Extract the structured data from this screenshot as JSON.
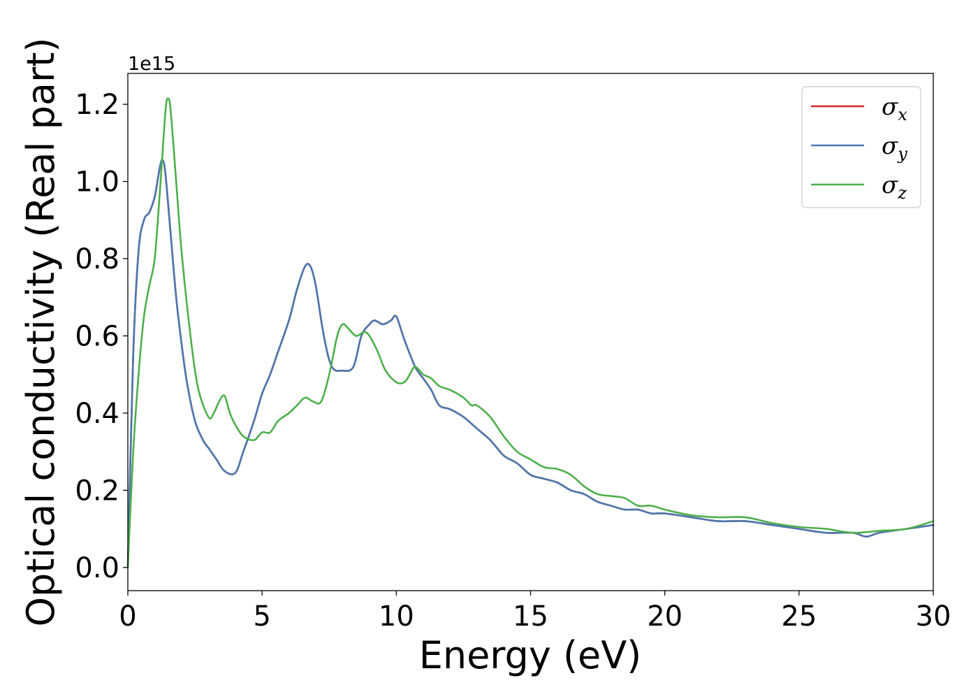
{
  "chart_data": {
    "type": "line",
    "xlabel": "Energy (eV)",
    "ylabel": "Optical conductivity (Real part)",
    "xlim": [
      0,
      30
    ],
    "ylim": [
      -0.06,
      1.28
    ],
    "y_offset_text": "1e15",
    "x_ticks": [
      0,
      5,
      10,
      15,
      20,
      25,
      30
    ],
    "x_tick_labels": [
      "0",
      "5",
      "10",
      "15",
      "20",
      "25",
      "30"
    ],
    "y_ticks": [
      0.0,
      0.2,
      0.4,
      0.6,
      0.8,
      1.0,
      1.2
    ],
    "y_tick_labels": [
      "0.0",
      "0.2",
      "0.4",
      "0.6",
      "0.8",
      "1.0",
      "1.2"
    ],
    "grid": false,
    "legend_position": "top-right",
    "series": [
      {
        "name": "σx",
        "legend_symbol": "σ",
        "legend_subscript": "x",
        "color": "#d62728",
        "x": [
          0,
          0.2,
          0.4,
          0.6,
          0.8,
          1.0,
          1.2,
          1.3,
          1.4,
          1.6,
          1.8,
          2.0,
          2.2,
          2.5,
          2.8,
          3.0,
          3.3,
          3.6,
          4.0,
          4.3,
          4.7,
          5.0,
          5.3,
          5.6,
          6.0,
          6.3,
          6.6,
          6.8,
          7.0,
          7.3,
          7.6,
          8.0,
          8.4,
          8.7,
          9.0,
          9.2,
          9.5,
          9.8,
          10.0,
          10.3,
          10.7,
          11.0,
          11.3,
          11.6,
          12.0,
          12.5,
          13.0,
          13.5,
          14.0,
          14.5,
          15.0,
          15.5,
          16.0,
          16.5,
          17.0,
          17.5,
          18.0,
          18.5,
          19.0,
          19.5,
          20.0,
          21.0,
          22.0,
          23.0,
          24.0,
          25.0,
          26.0,
          27.0,
          27.5,
          28.0,
          29.0,
          30.0
        ],
        "values": [
          0.0,
          0.55,
          0.82,
          0.9,
          0.92,
          0.96,
          1.04,
          1.055,
          1.02,
          0.86,
          0.7,
          0.58,
          0.48,
          0.38,
          0.33,
          0.31,
          0.28,
          0.25,
          0.245,
          0.3,
          0.38,
          0.45,
          0.5,
          0.56,
          0.64,
          0.72,
          0.78,
          0.78,
          0.73,
          0.6,
          0.52,
          0.51,
          0.52,
          0.6,
          0.63,
          0.64,
          0.63,
          0.64,
          0.65,
          0.59,
          0.52,
          0.49,
          0.46,
          0.42,
          0.41,
          0.39,
          0.36,
          0.33,
          0.29,
          0.27,
          0.24,
          0.23,
          0.22,
          0.2,
          0.19,
          0.17,
          0.16,
          0.15,
          0.15,
          0.14,
          0.14,
          0.13,
          0.12,
          0.12,
          0.11,
          0.1,
          0.09,
          0.09,
          0.08,
          0.09,
          0.1,
          0.11
        ]
      },
      {
        "name": "σy",
        "legend_symbol": "σ",
        "legend_subscript": "y",
        "color": "#4a78b0",
        "x": [
          0,
          0.2,
          0.4,
          0.6,
          0.8,
          1.0,
          1.2,
          1.3,
          1.4,
          1.6,
          1.8,
          2.0,
          2.2,
          2.5,
          2.8,
          3.0,
          3.3,
          3.6,
          4.0,
          4.3,
          4.7,
          5.0,
          5.3,
          5.6,
          6.0,
          6.3,
          6.6,
          6.8,
          7.0,
          7.3,
          7.6,
          8.0,
          8.4,
          8.7,
          9.0,
          9.2,
          9.5,
          9.8,
          10.0,
          10.3,
          10.7,
          11.0,
          11.3,
          11.6,
          12.0,
          12.5,
          13.0,
          13.5,
          14.0,
          14.5,
          15.0,
          15.5,
          16.0,
          16.5,
          17.0,
          17.5,
          18.0,
          18.5,
          19.0,
          19.5,
          20.0,
          21.0,
          22.0,
          23.0,
          24.0,
          25.0,
          26.0,
          27.0,
          27.5,
          28.0,
          29.0,
          30.0
        ],
        "values": [
          0.0,
          0.55,
          0.82,
          0.9,
          0.92,
          0.96,
          1.04,
          1.055,
          1.02,
          0.86,
          0.7,
          0.58,
          0.48,
          0.38,
          0.33,
          0.31,
          0.28,
          0.25,
          0.245,
          0.3,
          0.38,
          0.45,
          0.5,
          0.56,
          0.64,
          0.72,
          0.78,
          0.78,
          0.73,
          0.6,
          0.52,
          0.51,
          0.52,
          0.6,
          0.63,
          0.64,
          0.63,
          0.64,
          0.65,
          0.59,
          0.52,
          0.49,
          0.46,
          0.42,
          0.41,
          0.39,
          0.36,
          0.33,
          0.29,
          0.27,
          0.24,
          0.23,
          0.22,
          0.2,
          0.19,
          0.17,
          0.16,
          0.15,
          0.15,
          0.14,
          0.14,
          0.13,
          0.12,
          0.12,
          0.11,
          0.1,
          0.09,
          0.09,
          0.08,
          0.09,
          0.1,
          0.11
        ]
      },
      {
        "name": "σz",
        "legend_symbol": "σ",
        "legend_subscript": "z",
        "color": "#4daf4a",
        "x": [
          0,
          0.2,
          0.4,
          0.6,
          0.8,
          1.0,
          1.2,
          1.4,
          1.5,
          1.6,
          1.8,
          2.0,
          2.3,
          2.6,
          3.0,
          3.2,
          3.4,
          3.6,
          3.8,
          4.0,
          4.3,
          4.7,
          5.0,
          5.3,
          5.6,
          6.0,
          6.3,
          6.6,
          6.9,
          7.2,
          7.5,
          7.8,
          8.0,
          8.2,
          8.5,
          8.8,
          9.0,
          9.3,
          9.6,
          10.0,
          10.3,
          10.5,
          10.7,
          11.0,
          11.3,
          11.6,
          12.0,
          12.5,
          12.8,
          13.0,
          13.5,
          14.0,
          14.5,
          15.0,
          15.5,
          16.0,
          16.5,
          17.0,
          17.5,
          18.0,
          18.5,
          19.0,
          19.5,
          20.0,
          21.0,
          22.0,
          23.0,
          24.0,
          25.0,
          26.0,
          27.0,
          28.0,
          29.0,
          30.0
        ],
        "values": [
          0.0,
          0.3,
          0.5,
          0.65,
          0.73,
          0.8,
          0.98,
          1.18,
          1.215,
          1.18,
          1.0,
          0.82,
          0.62,
          0.47,
          0.39,
          0.4,
          0.43,
          0.445,
          0.4,
          0.37,
          0.34,
          0.33,
          0.35,
          0.35,
          0.38,
          0.4,
          0.42,
          0.44,
          0.43,
          0.43,
          0.5,
          0.6,
          0.63,
          0.62,
          0.6,
          0.61,
          0.6,
          0.56,
          0.51,
          0.48,
          0.48,
          0.5,
          0.52,
          0.5,
          0.49,
          0.47,
          0.46,
          0.44,
          0.42,
          0.42,
          0.39,
          0.34,
          0.3,
          0.28,
          0.26,
          0.255,
          0.24,
          0.21,
          0.19,
          0.185,
          0.18,
          0.16,
          0.16,
          0.15,
          0.135,
          0.13,
          0.13,
          0.115,
          0.105,
          0.1,
          0.09,
          0.095,
          0.1,
          0.12
        ]
      }
    ]
  }
}
